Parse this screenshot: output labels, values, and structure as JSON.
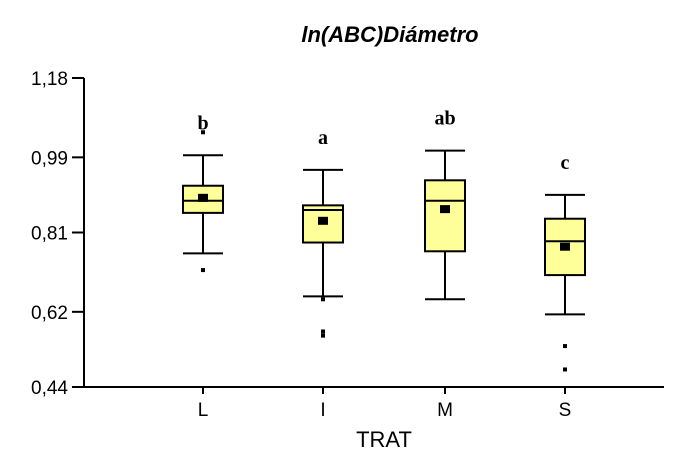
{
  "chart_data": {
    "type": "boxplot",
    "title": "ln(ABC)Diámetro",
    "xlabel": "TRAT",
    "ylabel": "",
    "ylim": [
      0.44,
      1.18
    ],
    "yticks": [
      "1,18",
      "0,99",
      "0,81",
      "0,62",
      "0,44"
    ],
    "ytick_values": [
      1.18,
      0.99,
      0.81,
      0.62,
      0.44
    ],
    "categories": [
      "L",
      "I",
      "M",
      "S"
    ],
    "box_color": "#ffff99",
    "groups": [
      {
        "category": "L",
        "whisker_low": 0.76,
        "q1": 0.857,
        "median": 0.886,
        "q3": 0.922,
        "whisker_high": 0.995,
        "mean": 0.893,
        "outliers": [
          1.05,
          0.72
        ],
        "letter": "b"
      },
      {
        "category": "I",
        "whisker_low": 0.657,
        "q1": 0.786,
        "median": 0.864,
        "q3": 0.875,
        "whisker_high": 0.96,
        "mean": 0.838,
        "outliers": [
          0.65,
          0.563,
          0.573
        ],
        "letter": "a"
      },
      {
        "category": "M",
        "whisker_low": 0.65,
        "q1": 0.765,
        "median": 0.886,
        "q3": 0.935,
        "whisker_high": 1.006,
        "mean": 0.866,
        "outliers": [],
        "letter": "ab"
      },
      {
        "category": "S",
        "whisker_low": 0.614,
        "q1": 0.708,
        "median": 0.789,
        "q3": 0.843,
        "whisker_high": 0.9,
        "mean": 0.776,
        "outliers": [
          0.538,
          0.482
        ],
        "letter": "c"
      }
    ]
  }
}
